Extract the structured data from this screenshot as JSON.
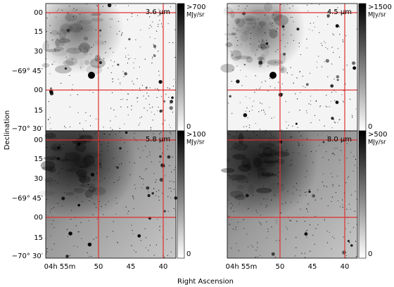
{
  "axes": {
    "y_label": "Declination",
    "x_label": "Right Ascension"
  },
  "y_ticks": [
    "00",
    "15",
    "30",
    "−69° 45′",
    "00",
    "15",
    "−70° 30′"
  ],
  "x_ticks": [
    "04h 55m",
    "50",
    "45",
    "40"
  ],
  "panels": [
    {
      "label": "3.6 μm",
      "colorbar_max": ">700",
      "colorbar_unit": "MJy/sr",
      "colorbar_min": "0"
    },
    {
      "label": "4.5 μm",
      "colorbar_max": ">1500",
      "colorbar_unit": "MJy/sr",
      "colorbar_min": "0"
    },
    {
      "label": "5.8 μm",
      "colorbar_max": ">100",
      "colorbar_unit": "MJy/sr",
      "colorbar_min": "0"
    },
    {
      "label": "8.0 μm",
      "colorbar_max": ">500",
      "colorbar_unit": "MJy/sr",
      "colorbar_min": "0"
    }
  ]
}
